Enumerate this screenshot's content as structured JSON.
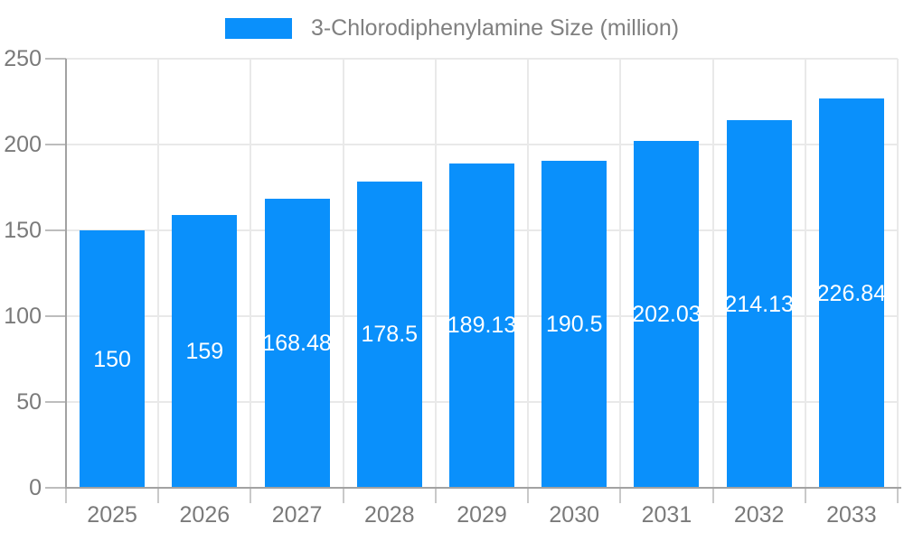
{
  "chart_data": {
    "type": "bar",
    "legend": "3-Chlorodiphenylamine Size (million)",
    "legend_position": "top",
    "categories": [
      "2025",
      "2026",
      "2027",
      "2028",
      "2029",
      "2030",
      "2031",
      "2032",
      "2033"
    ],
    "values": [
      150,
      159,
      168.48,
      178.5,
      189.13,
      190.5,
      202.03,
      214.13,
      226.84
    ],
    "value_labels": [
      "150",
      "159",
      "168.48",
      "178.5",
      "189.13",
      "190.5",
      "202.03",
      "214.13",
      "226.84"
    ],
    "y_ticks": [
      0,
      50,
      100,
      150,
      200,
      250
    ],
    "y_tick_labels": [
      "0",
      "50",
      "100",
      "150",
      "200",
      "250"
    ],
    "ylim": [
      0,
      250
    ],
    "xlabel": "",
    "ylabel": "",
    "grid": true,
    "colors": {
      "bar": "#0a90fb",
      "value_label": "#ffffff",
      "axis_line": "#a2a2a2",
      "gridline": "#e9e9e9",
      "tick_text": "#7a7a7a",
      "legend_text": "#808080",
      "background": "#ffffff"
    }
  }
}
